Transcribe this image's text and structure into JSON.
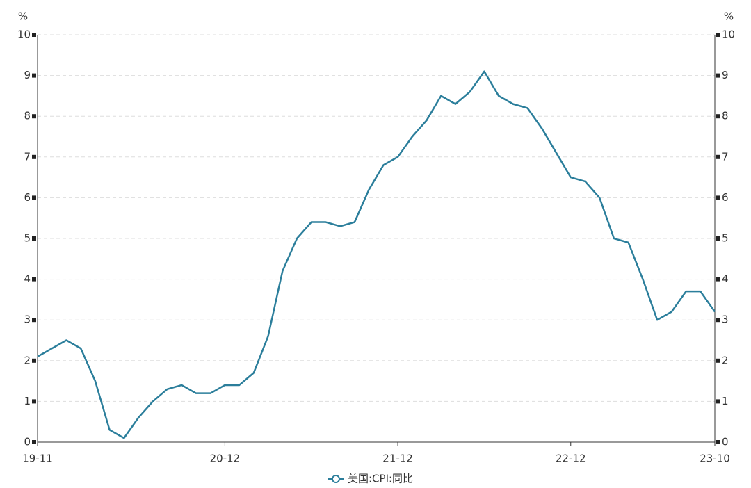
{
  "chart_data": {
    "type": "line",
    "y_unit": "%",
    "y2_unit": "%",
    "categories": [
      "19-11",
      null,
      null,
      null,
      null,
      null,
      null,
      null,
      null,
      null,
      null,
      null,
      null,
      "20-12",
      null,
      null,
      null,
      null,
      null,
      null,
      null,
      null,
      null,
      null,
      null,
      "21-12",
      null,
      null,
      null,
      null,
      null,
      null,
      null,
      null,
      null,
      null,
      null,
      "22-12",
      null,
      null,
      null,
      null,
      null,
      null,
      null,
      null,
      null,
      "23-10"
    ],
    "series": [
      {
        "name": "美国:CPI:同比",
        "color": "#2b7e9b",
        "axis": "y",
        "values": [
          2.1,
          2.3,
          2.5,
          2.3,
          1.5,
          0.3,
          0.1,
          0.6,
          1.0,
          1.3,
          1.4,
          1.2,
          1.2,
          1.4,
          1.4,
          1.7,
          2.6,
          4.2,
          5.0,
          5.4,
          5.4,
          5.3,
          5.4,
          6.2,
          6.8,
          7.0,
          7.5,
          7.9,
          8.5,
          8.3,
          8.6,
          9.1,
          8.5,
          8.3,
          8.2,
          7.7,
          7.1,
          6.5,
          6.4,
          6.0,
          5.0,
          4.9,
          4.0,
          3.0,
          3.2,
          3.7,
          3.7,
          3.2
        ]
      }
    ],
    "ylim": [
      0,
      10
    ],
    "yticks": [
      0,
      1,
      2,
      3,
      4,
      5,
      6,
      7,
      8,
      9,
      10
    ],
    "y2lim": [
      0,
      10
    ],
    "y2ticks": [
      0,
      1,
      2,
      3,
      4,
      5,
      6,
      7,
      8,
      9,
      10
    ],
    "grid": true,
    "legend": "bottom"
  }
}
